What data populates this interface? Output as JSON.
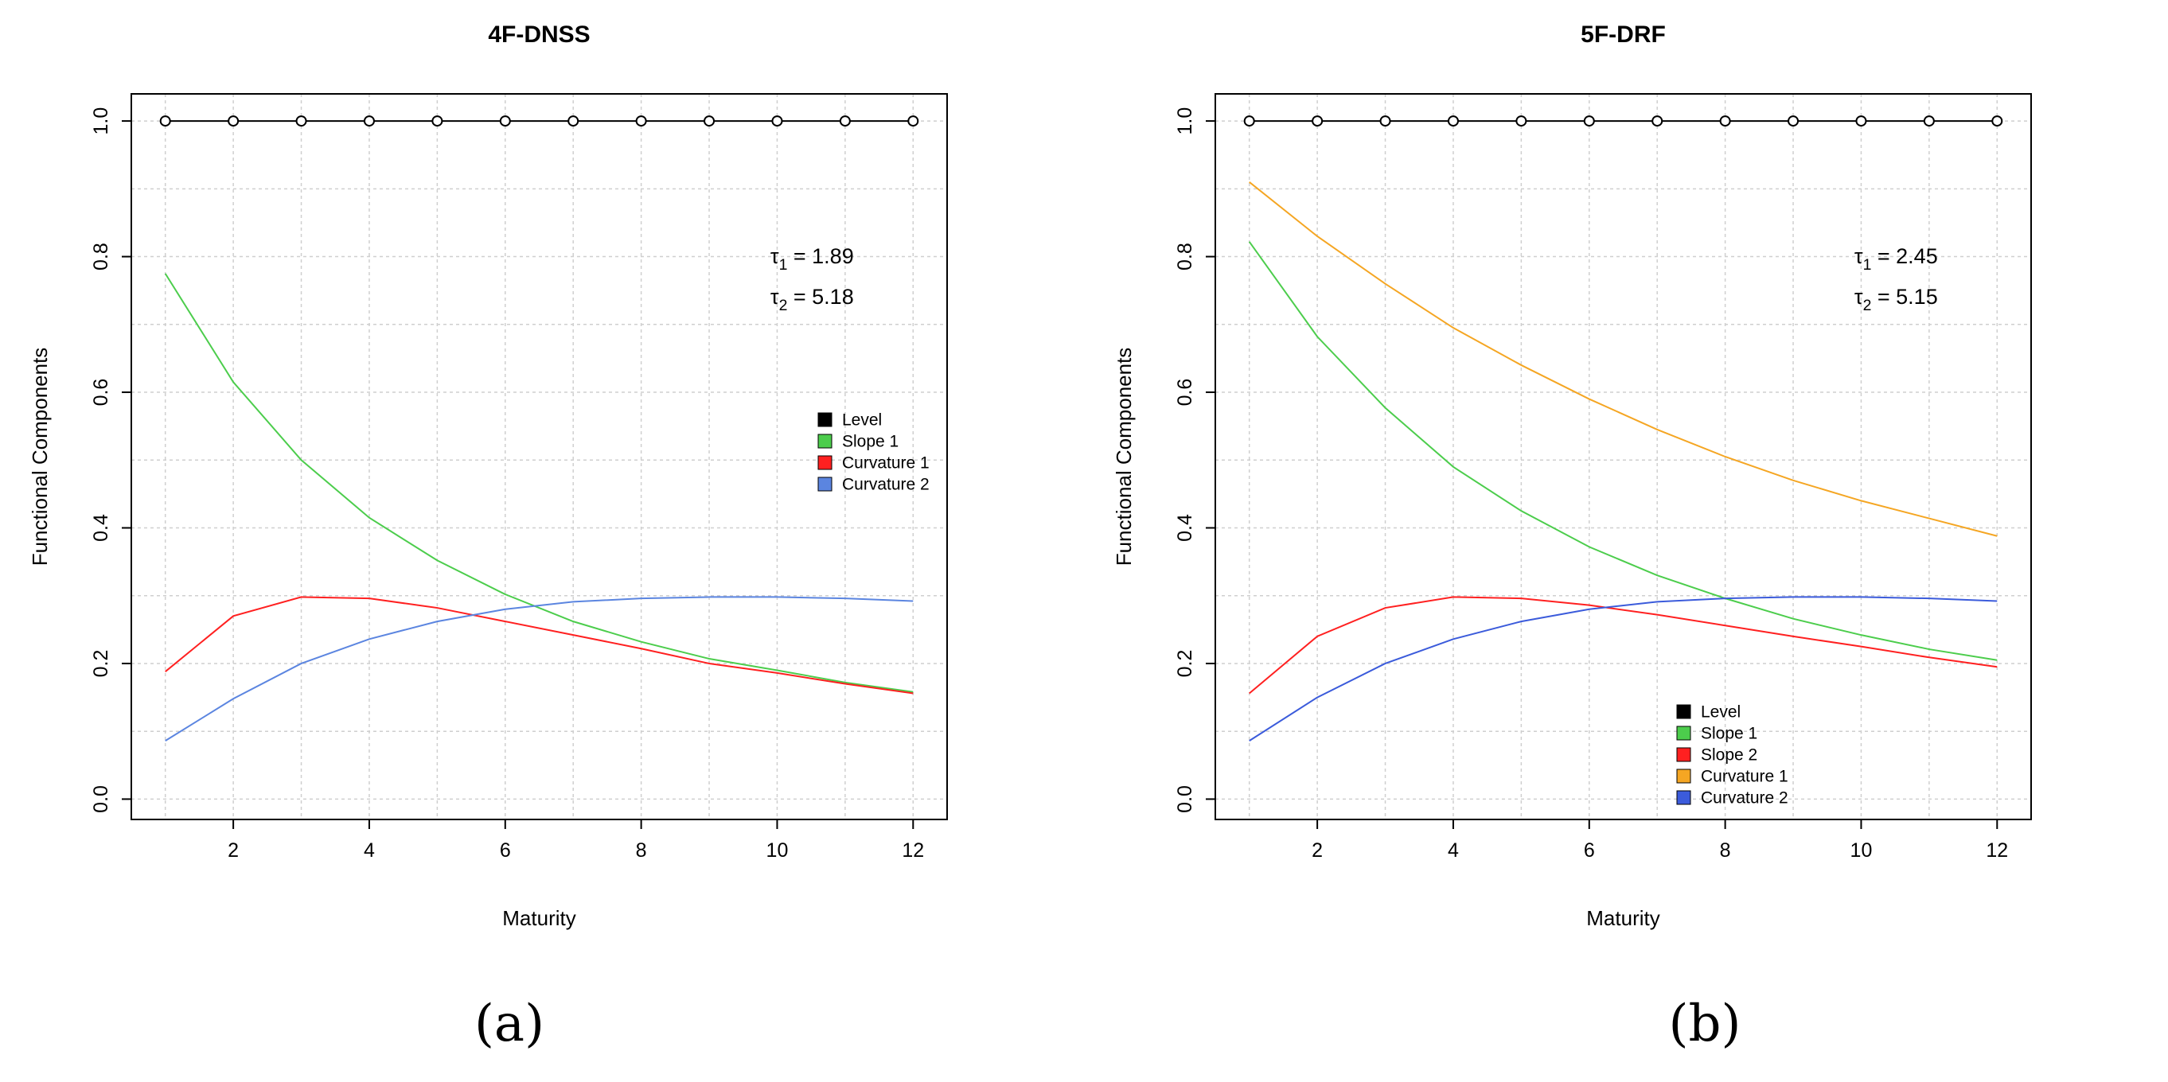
{
  "figure": {
    "panel_labels": [
      "(a)",
      "(b)"
    ]
  },
  "chart_data": [
    {
      "type": "line",
      "title": "4F-DNSS",
      "xlabel": "Maturity",
      "ylabel": "Functional Components",
      "xlim": [
        0.5,
        12.5
      ],
      "ylim": [
        -0.03,
        1.04
      ],
      "xticks": [
        2,
        4,
        6,
        8,
        10,
        12
      ],
      "xtick_labels": [
        "2",
        "4",
        "6",
        "8",
        "10",
        "12"
      ],
      "yticks": [
        0.0,
        0.2,
        0.4,
        0.6,
        0.8,
        1.0
      ],
      "ytick_labels": [
        "0.0",
        "0.2",
        "0.4",
        "0.6",
        "0.8",
        "1.0"
      ],
      "grid": true,
      "x": [
        1,
        2,
        3,
        4,
        5,
        6,
        7,
        8,
        9,
        10,
        11,
        12
      ],
      "series": [
        {
          "name": "Level",
          "color": "#000000",
          "markers": true,
          "values": [
            1,
            1,
            1,
            1,
            1,
            1,
            1,
            1,
            1,
            1,
            1,
            1
          ]
        },
        {
          "name": "Slope 1",
          "color": "#4ccd4c",
          "markers": false,
          "values": [
            0.775,
            0.615,
            0.5,
            0.415,
            0.352,
            0.302,
            0.262,
            0.232,
            0.207,
            0.19,
            0.172,
            0.158
          ]
        },
        {
          "name": "Curvature 1",
          "color": "#ff2020",
          "markers": false,
          "values": [
            0.188,
            0.27,
            0.298,
            0.296,
            0.282,
            0.262,
            0.242,
            0.222,
            0.2,
            0.186,
            0.17,
            0.156
          ]
        },
        {
          "name": "Curvature 2",
          "color": "#5b85e0",
          "markers": false,
          "values": [
            0.086,
            0.148,
            0.2,
            0.236,
            0.262,
            0.28,
            0.291,
            0.296,
            0.298,
            0.298,
            0.296,
            0.292
          ]
        }
      ],
      "annotations": [
        {
          "id": "tau1",
          "symbol": "τ",
          "sub": "1",
          "text": " = 1.89",
          "x": 9.9,
          "y": 0.79
        },
        {
          "id": "tau2",
          "symbol": "τ",
          "sub": "2",
          "text": " = 5.18",
          "x": 9.9,
          "y": 0.73
        }
      ],
      "legend_position": "center-right"
    },
    {
      "type": "line",
      "title": "5F-DRF",
      "xlabel": "Maturity",
      "ylabel": "Functional Components",
      "xlim": [
        0.5,
        12.5
      ],
      "ylim": [
        -0.03,
        1.04
      ],
      "xticks": [
        2,
        4,
        6,
        8,
        10,
        12
      ],
      "xtick_labels": [
        "2",
        "4",
        "6",
        "8",
        "10",
        "12"
      ],
      "yticks": [
        0.0,
        0.2,
        0.4,
        0.6,
        0.8,
        1.0
      ],
      "ytick_labels": [
        "0.0",
        "0.2",
        "0.4",
        "0.6",
        "0.8",
        "1.0"
      ],
      "grid": true,
      "x": [
        1,
        2,
        3,
        4,
        5,
        6,
        7,
        8,
        9,
        10,
        11,
        12
      ],
      "series": [
        {
          "name": "Level",
          "color": "#000000",
          "markers": true,
          "values": [
            1,
            1,
            1,
            1,
            1,
            1,
            1,
            1,
            1,
            1,
            1,
            1
          ]
        },
        {
          "name": "Slope 1",
          "color": "#4ccd4c",
          "markers": false,
          "values": [
            0.822,
            0.682,
            0.577,
            0.49,
            0.425,
            0.372,
            0.33,
            0.296,
            0.266,
            0.242,
            0.221,
            0.205
          ]
        },
        {
          "name": "Slope 2",
          "color": "#ff2020",
          "markers": false,
          "values": [
            0.156,
            0.24,
            0.282,
            0.298,
            0.296,
            0.286,
            0.272,
            0.256,
            0.24,
            0.225,
            0.209,
            0.195
          ]
        },
        {
          "name": "Curvature 1",
          "color": "#f5a623",
          "markers": false,
          "values": [
            0.91,
            0.83,
            0.76,
            0.695,
            0.64,
            0.59,
            0.545,
            0.505,
            0.47,
            0.44,
            0.414,
            0.388
          ]
        },
        {
          "name": "Curvature 2",
          "color": "#3b5bdb",
          "markers": false,
          "values": [
            0.086,
            0.15,
            0.2,
            0.236,
            0.262,
            0.28,
            0.291,
            0.296,
            0.298,
            0.298,
            0.296,
            0.292
          ]
        }
      ],
      "annotations": [
        {
          "id": "tau1",
          "symbol": "τ",
          "sub": "1",
          "text": " = 2.45",
          "x": 9.9,
          "y": 0.79
        },
        {
          "id": "tau2",
          "symbol": "τ",
          "sub": "2",
          "text": " = 5.15",
          "x": 9.9,
          "y": 0.73
        }
      ],
      "legend_position": "bottom-center"
    }
  ]
}
